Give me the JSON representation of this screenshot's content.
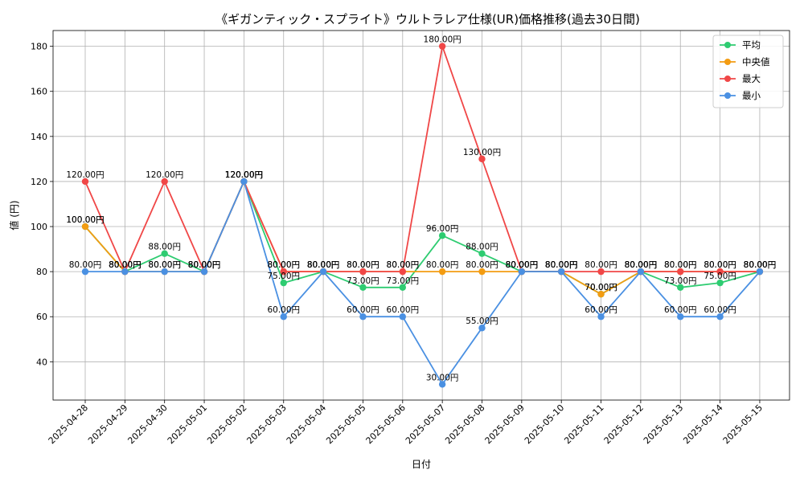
{
  "chart_data": {
    "type": "line",
    "title": "《ギガンティック・スプライト》ウルトラレア仕様(UR)価格推移(過去30日間)",
    "xlabel": "日付",
    "ylabel": "値 (円)",
    "ylim": [
      23,
      187
    ],
    "yticks": [
      40,
      60,
      80,
      100,
      120,
      140,
      160,
      180
    ],
    "grid": true,
    "legend_position": "top-right",
    "label_suffix": "円",
    "categories": [
      "2025-04-28",
      "2025-04-29",
      "2025-04-30",
      "2025-05-01",
      "2025-05-02",
      "2025-05-03",
      "2025-05-04",
      "2025-05-05",
      "2025-05-06",
      "2025-05-07",
      "2025-05-08",
      "2025-05-09",
      "2025-05-10",
      "2025-05-11",
      "2025-05-12",
      "2025-05-13",
      "2025-05-14",
      "2025-05-15"
    ],
    "series": [
      {
        "name": "平均",
        "color": "#2ecc71",
        "values": [
          100,
          80,
          88,
          80,
          120,
          75,
          80,
          73,
          73,
          96,
          88,
          80,
          80,
          70,
          80,
          73,
          75,
          80
        ]
      },
      {
        "name": "中央値",
        "color": "#f39c12",
        "values": [
          100,
          80,
          80,
          80,
          120,
          80,
          80,
          80,
          80,
          80,
          80,
          80,
          80,
          70,
          80,
          80,
          80,
          80
        ]
      },
      {
        "name": "最大",
        "color": "#f04747",
        "values": [
          120,
          80,
          120,
          80,
          120,
          80,
          80,
          80,
          80,
          180,
          130,
          80,
          80,
          80,
          80,
          80,
          80,
          80
        ]
      },
      {
        "name": "最小",
        "color": "#4a90e2",
        "values": [
          80,
          80,
          80,
          80,
          120,
          60,
          80,
          60,
          60,
          30,
          55,
          80,
          80,
          60,
          80,
          60,
          60,
          80
        ]
      }
    ]
  }
}
